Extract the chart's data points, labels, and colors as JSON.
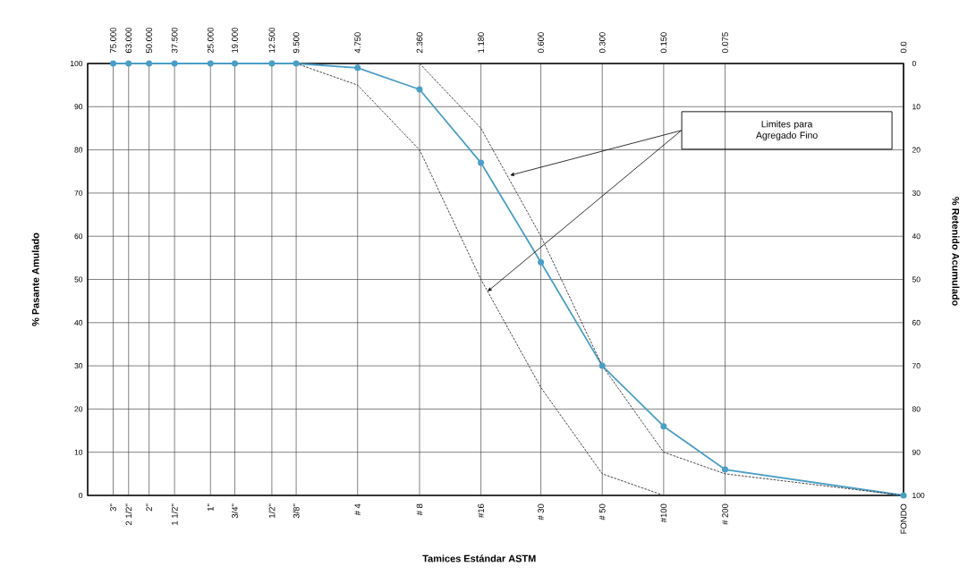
{
  "chart_data": {
    "type": "line",
    "ylabel": "% Pasante Amulado",
    "y2label": "% Retenido Acumulado",
    "annotations": [
      "Limites para Agregado Fino",
      "3\"",
      "2 1/2\"",
      "2\"",
      "1 1/2\"",
      "1\"",
      "3/4\"",
      "1/2\"",
      "3/8\"",
      "# 4",
      "# 8",
      "#16",
      "# 30",
      "# 50",
      "#100",
      "# 200",
      "FONDO",
      "Tamices Estándar ASTM"
    ],
    "x": [
      75,
      63,
      50,
      37.5,
      25,
      19,
      12.5,
      9.5,
      4.75,
      2.36,
      1.18,
      0.6,
      0.3,
      0.15,
      0.075,
      0.01
    ],
    "series": [
      {
        "color": "#4a9ec6",
        "values": [
          100,
          100,
          100,
          100,
          100,
          100,
          100,
          100,
          99,
          94,
          77,
          54,
          30,
          16,
          6,
          0
        ]
      },
      {
        "color": "#333333",
        "marker": "none",
        "line_style": "dashed",
        "values": [
          null,
          null,
          null,
          null,
          null,
          null,
          null,
          100,
          95,
          80,
          50,
          25,
          5,
          0,
          null,
          null
        ]
      },
      {
        "color": "#333333",
        "marker": "none",
        "line_style": "dashed",
        "values": [
          null,
          null,
          null,
          null,
          null,
          null,
          null,
          null,
          null,
          100,
          85,
          60,
          30,
          10,
          5,
          0
        ]
      }
    ],
    "log": "x",
    "xlim": [
      100,
      0.01
    ],
    "ylim": [
      0,
      100
    ],
    "xticks": [
      {
        "value": 75,
        "label": "75.000"
      },
      {
        "value": 63,
        "label": "63.000"
      },
      {
        "value": 50,
        "label": "50.000"
      },
      {
        "value": 37.5,
        "label": "37.500"
      },
      {
        "value": 25,
        "label": "25.000"
      },
      {
        "value": 19,
        "label": "19.000"
      },
      {
        "value": 12.5,
        "label": "12.500"
      },
      {
        "value": 9.5,
        "label": "9.500"
      },
      {
        "value": 4.75,
        "label": "4.750"
      },
      {
        "value": 2.36,
        "label": "2.360"
      },
      {
        "value": 1.18,
        "label": "1.180"
      },
      {
        "value": 0.6,
        "label": "0.600"
      },
      {
        "value": 0.3,
        "label": "0.300"
      },
      {
        "value": 0.15,
        "label": "0.150"
      },
      {
        "value": 0.075,
        "label": "0.075"
      },
      {
        "value": 0.01,
        "label": "0.0"
      }
    ],
    "yticks": [
      0,
      10,
      20,
      30,
      40,
      50,
      60,
      70,
      80,
      90,
      100
    ],
    "y2lim": [
      100,
      0
    ],
    "y2ticks": [
      0,
      10,
      20,
      30,
      40,
      50,
      60,
      70,
      80,
      90,
      100
    ],
    "grid": true,
    "marker": "circle",
    "line_style": "solid"
  }
}
